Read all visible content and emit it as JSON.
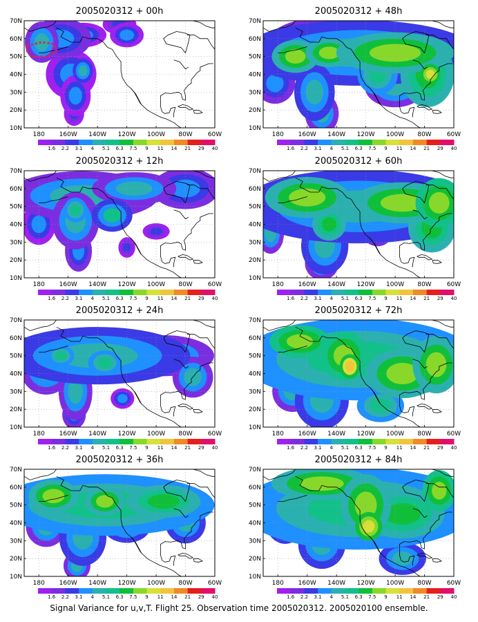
{
  "figure": {
    "caption": "Signal Variance for u,v,T. Flight 25. Observation time 2005020312. 2005020100 ensemble."
  },
  "colorbar": {
    "labels": [
      "1.6",
      "2.2",
      "3.1",
      "4",
      "5.1",
      "6.3",
      "7.5",
      "9",
      "11",
      "14",
      "21",
      "29",
      "40"
    ],
    "colors": [
      "#a020f0",
      "#7b2ee0",
      "#3a3ae6",
      "#1e90ff",
      "#2bb0b0",
      "#12c08a",
      "#0fbf3a",
      "#88d82a",
      "#d8e03a",
      "#f0c43c",
      "#f08a28",
      "#e61e1e",
      "#e0106a"
    ]
  },
  "colors": {
    "land_outline": "#000000",
    "grid": "#9a9a9a",
    "frame": "#000000",
    "observation_marker": "#e8204a"
  },
  "chart_data": [
    {
      "type": "heatmap",
      "title": "2005020312 + 00h",
      "xlim": [
        -190,
        -60
      ],
      "ylim": [
        10,
        70
      ],
      "x_ticks": [
        "180",
        "160W",
        "140W",
        "120W",
        "100W",
        "80W",
        "60W"
      ],
      "y_ticks": [
        "10N",
        "20N",
        "30N",
        "40N",
        "50N",
        "60N",
        "70N"
      ],
      "grid": true,
      "blobs": [
        {
          "lon": -178,
          "lat": 58,
          "rx": 10,
          "ry": 10,
          "level": 0.3
        },
        {
          "lon": -165,
          "lat": 60,
          "rx": 18,
          "ry": 10,
          "level": 0.28
        },
        {
          "lon": -150,
          "lat": 62,
          "rx": 14,
          "ry": 6,
          "level": 0.22
        },
        {
          "lon": -120,
          "lat": 62,
          "rx": 10,
          "ry": 6,
          "level": 0.22
        },
        {
          "lon": -125,
          "lat": 68,
          "rx": 10,
          "ry": 5,
          "level": 0.18
        },
        {
          "lon": -158,
          "lat": 40,
          "rx": 15,
          "ry": 12,
          "level": 0.22
        },
        {
          "lon": -155,
          "lat": 28,
          "rx": 9,
          "ry": 10,
          "level": 0.22
        },
        {
          "lon": -156,
          "lat": 18,
          "rx": 6,
          "ry": 6,
          "level": 0.18
        },
        {
          "lon": -150,
          "lat": 42,
          "rx": 6,
          "ry": 6,
          "level": 0.35
        }
      ]
    },
    {
      "type": "heatmap",
      "title": "2005020312 + 48h",
      "xlim": [
        -190,
        -60
      ],
      "ylim": [
        10,
        70
      ],
      "x_ticks": [
        "180",
        "160W",
        "140W",
        "120W",
        "100W",
        "80W",
        "60W"
      ],
      "y_ticks": [
        "10N",
        "20N",
        "30N",
        "40N",
        "50N",
        "60N",
        "70N"
      ],
      "grid": true,
      "blobs": [
        {
          "lon": -125,
          "lat": 52,
          "rx": 70,
          "ry": 16,
          "level": 0.32
        },
        {
          "lon": -150,
          "lat": 60,
          "rx": 30,
          "ry": 10,
          "level": 0.3
        },
        {
          "lon": -168,
          "lat": 50,
          "rx": 14,
          "ry": 8,
          "level": 0.55
        },
        {
          "lon": -145,
          "lat": 52,
          "rx": 14,
          "ry": 7,
          "level": 0.55
        },
        {
          "lon": -100,
          "lat": 52,
          "rx": 35,
          "ry": 10,
          "level": 0.55
        },
        {
          "lon": -112,
          "lat": 40,
          "rx": 12,
          "ry": 10,
          "level": 0.45
        },
        {
          "lon": -100,
          "lat": 33,
          "rx": 18,
          "ry": 10,
          "level": 0.3
        },
        {
          "lon": -78,
          "lat": 40,
          "rx": 16,
          "ry": 16,
          "level": 0.5
        },
        {
          "lon": -155,
          "lat": 30,
          "rx": 12,
          "ry": 14,
          "level": 0.32
        },
        {
          "lon": -150,
          "lat": 18,
          "rx": 10,
          "ry": 10,
          "level": 0.3
        },
        {
          "lon": -182,
          "lat": 35,
          "rx": 12,
          "ry": 10,
          "level": 0.25
        },
        {
          "lon": -76,
          "lat": 40,
          "rx": 6,
          "ry": 5,
          "level": 0.68
        }
      ]
    },
    {
      "type": "heatmap",
      "title": "2005020312 + 12h",
      "xlim": [
        -190,
        -60
      ],
      "ylim": [
        10,
        70
      ],
      "x_ticks": [
        "180",
        "160W",
        "140W",
        "120W",
        "100W",
        "80W",
        "60W"
      ],
      "y_ticks": [
        "10N",
        "20N",
        "30N",
        "40N",
        "50N",
        "60N",
        "70N"
      ],
      "grid": true,
      "blobs": [
        {
          "lon": -150,
          "lat": 56,
          "rx": 45,
          "ry": 12,
          "level": 0.3
        },
        {
          "lon": -115,
          "lat": 60,
          "rx": 25,
          "ry": 8,
          "level": 0.3
        },
        {
          "lon": -80,
          "lat": 60,
          "rx": 20,
          "ry": 10,
          "level": 0.25
        },
        {
          "lon": -155,
          "lat": 42,
          "rx": 14,
          "ry": 14,
          "level": 0.3
        },
        {
          "lon": -180,
          "lat": 40,
          "rx": 10,
          "ry": 10,
          "level": 0.22
        },
        {
          "lon": -153,
          "lat": 25,
          "rx": 8,
          "ry": 10,
          "level": 0.24
        },
        {
          "lon": -130,
          "lat": 45,
          "rx": 12,
          "ry": 8,
          "level": 0.38
        },
        {
          "lon": -120,
          "lat": 27,
          "rx": 5,
          "ry": 5,
          "level": 0.2
        },
        {
          "lon": -100,
          "lat": 36,
          "rx": 8,
          "ry": 4,
          "level": 0.2
        },
        {
          "lon": -155,
          "lat": 48,
          "rx": 7,
          "ry": 6,
          "level": 0.45
        }
      ]
    },
    {
      "type": "heatmap",
      "title": "2005020312 + 60h",
      "xlim": [
        -190,
        -60
      ],
      "ylim": [
        10,
        70
      ],
      "x_ticks": [
        "180",
        "160W",
        "140W",
        "120W",
        "100W",
        "80W",
        "60W"
      ],
      "y_ticks": [
        "10N",
        "20N",
        "30N",
        "40N",
        "50N",
        "60N",
        "70N"
      ],
      "grid": true,
      "blobs": [
        {
          "lon": -125,
          "lat": 50,
          "rx": 70,
          "ry": 18,
          "level": 0.34
        },
        {
          "lon": -160,
          "lat": 55,
          "rx": 25,
          "ry": 10,
          "level": 0.55
        },
        {
          "lon": -130,
          "lat": 58,
          "rx": 18,
          "ry": 10,
          "level": 0.3
        },
        {
          "lon": -95,
          "lat": 52,
          "rx": 30,
          "ry": 10,
          "level": 0.55
        },
        {
          "lon": -70,
          "lat": 52,
          "rx": 14,
          "ry": 12,
          "level": 0.62
        },
        {
          "lon": -112,
          "lat": 38,
          "rx": 10,
          "ry": 9,
          "level": 0.3
        },
        {
          "lon": -75,
          "lat": 38,
          "rx": 14,
          "ry": 12,
          "level": 0.5
        },
        {
          "lon": -148,
          "lat": 28,
          "rx": 14,
          "ry": 14,
          "level": 0.32
        },
        {
          "lon": -150,
          "lat": 18,
          "rx": 10,
          "ry": 8,
          "level": 0.3
        },
        {
          "lon": -185,
          "lat": 35,
          "rx": 8,
          "ry": 10,
          "level": 0.3
        },
        {
          "lon": -145,
          "lat": 40,
          "rx": 10,
          "ry": 8,
          "level": 0.5
        }
      ]
    },
    {
      "type": "heatmap",
      "title": "2005020312 + 24h",
      "xlim": [
        -190,
        -60
      ],
      "ylim": [
        10,
        70
      ],
      "x_ticks": [
        "180",
        "160W",
        "140W",
        "120W",
        "100W",
        "80W",
        "60W"
      ],
      "y_ticks": [
        "10N",
        "20N",
        "30N",
        "40N",
        "50N",
        "60N",
        "70N"
      ],
      "grid": true,
      "blobs": [
        {
          "lon": -140,
          "lat": 50,
          "rx": 55,
          "ry": 14,
          "level": 0.35
        },
        {
          "lon": -95,
          "lat": 50,
          "rx": 30,
          "ry": 10,
          "level": 0.3
        },
        {
          "lon": -175,
          "lat": 42,
          "rx": 15,
          "ry": 12,
          "level": 0.3
        },
        {
          "lon": -155,
          "lat": 30,
          "rx": 10,
          "ry": 14,
          "level": 0.3
        },
        {
          "lon": -156,
          "lat": 17,
          "rx": 7,
          "ry": 7,
          "level": 0.25
        },
        {
          "lon": -135,
          "lat": 46,
          "rx": 10,
          "ry": 6,
          "level": 0.45
        },
        {
          "lon": -165,
          "lat": 50,
          "rx": 8,
          "ry": 5,
          "level": 0.45
        },
        {
          "lon": -75,
          "lat": 38,
          "rx": 12,
          "ry": 10,
          "level": 0.3
        },
        {
          "lon": -123,
          "lat": 26,
          "rx": 7,
          "ry": 5,
          "level": 0.22
        }
      ]
    },
    {
      "type": "heatmap",
      "title": "2005020312 + 72h",
      "xlim": [
        -190,
        -60
      ],
      "ylim": [
        10,
        70
      ],
      "x_ticks": [
        "180",
        "160W",
        "140W",
        "120W",
        "100W",
        "80W",
        "60W"
      ],
      "y_ticks": [
        "10N",
        "20N",
        "30N",
        "40N",
        "50N",
        "60N",
        "70N"
      ],
      "grid": true,
      "blobs": [
        {
          "lon": -125,
          "lat": 48,
          "rx": 70,
          "ry": 20,
          "level": 0.4
        },
        {
          "lon": -165,
          "lat": 58,
          "rx": 18,
          "ry": 8,
          "level": 0.58
        },
        {
          "lon": -135,
          "lat": 50,
          "rx": 14,
          "ry": 12,
          "level": 0.58
        },
        {
          "lon": -131,
          "lat": 44,
          "rx": 6,
          "ry": 6,
          "level": 0.72
        },
        {
          "lon": -95,
          "lat": 40,
          "rx": 22,
          "ry": 12,
          "level": 0.55
        },
        {
          "lon": -72,
          "lat": 45,
          "rx": 14,
          "ry": 14,
          "level": 0.55
        },
        {
          "lon": -150,
          "lat": 25,
          "rx": 16,
          "ry": 14,
          "level": 0.36
        },
        {
          "lon": -110,
          "lat": 22,
          "rx": 14,
          "ry": 8,
          "level": 0.42
        },
        {
          "lon": -170,
          "lat": 30,
          "rx": 12,
          "ry": 10,
          "level": 0.3
        }
      ]
    },
    {
      "type": "heatmap",
      "title": "2005020312 + 36h",
      "xlim": [
        -190,
        -60
      ],
      "ylim": [
        10,
        70
      ],
      "x_ticks": [
        "180",
        "160W",
        "140W",
        "120W",
        "100W",
        "80W",
        "60W"
      ],
      "y_ticks": [
        "10N",
        "20N",
        "30N",
        "40N",
        "50N",
        "60N",
        "70N"
      ],
      "grid": true,
      "blobs": [
        {
          "lon": -135,
          "lat": 50,
          "rx": 65,
          "ry": 15,
          "level": 0.4
        },
        {
          "lon": -170,
          "lat": 55,
          "rx": 15,
          "ry": 8,
          "level": 0.55
        },
        {
          "lon": -135,
          "lat": 52,
          "rx": 12,
          "ry": 7,
          "level": 0.55
        },
        {
          "lon": -95,
          "lat": 52,
          "rx": 22,
          "ry": 8,
          "level": 0.5
        },
        {
          "lon": -150,
          "lat": 32,
          "rx": 14,
          "ry": 14,
          "level": 0.35
        },
        {
          "lon": -154,
          "lat": 16,
          "rx": 8,
          "ry": 7,
          "level": 0.3
        },
        {
          "lon": -120,
          "lat": 38,
          "rx": 14,
          "ry": 8,
          "level": 0.35
        },
        {
          "lon": -80,
          "lat": 40,
          "rx": 12,
          "ry": 10,
          "level": 0.32
        },
        {
          "lon": -175,
          "lat": 38,
          "rx": 12,
          "ry": 10,
          "level": 0.3
        }
      ]
    },
    {
      "type": "heatmap",
      "title": "2005020312 + 84h",
      "xlim": [
        -190,
        -60
      ],
      "ylim": [
        10,
        70
      ],
      "x_ticks": [
        "180",
        "160W",
        "140W",
        "120W",
        "100W",
        "80W",
        "60W"
      ],
      "y_ticks": [
        "10N",
        "20N",
        "30N",
        "40N",
        "50N",
        "60N",
        "70N"
      ],
      "grid": true,
      "blobs": [
        {
          "lon": -125,
          "lat": 48,
          "rx": 70,
          "ry": 20,
          "level": 0.4
        },
        {
          "lon": -150,
          "lat": 62,
          "rx": 30,
          "ry": 8,
          "level": 0.55
        },
        {
          "lon": -120,
          "lat": 50,
          "rx": 15,
          "ry": 15,
          "level": 0.55
        },
        {
          "lon": -118,
          "lat": 38,
          "rx": 8,
          "ry": 7,
          "level": 0.68
        },
        {
          "lon": -95,
          "lat": 45,
          "rx": 25,
          "ry": 12,
          "level": 0.52
        },
        {
          "lon": -70,
          "lat": 58,
          "rx": 10,
          "ry": 10,
          "level": 0.62
        },
        {
          "lon": -150,
          "lat": 28,
          "rx": 14,
          "ry": 12,
          "level": 0.36
        },
        {
          "lon": -95,
          "lat": 20,
          "rx": 14,
          "ry": 8,
          "level": 0.36
        },
        {
          "lon": -175,
          "lat": 42,
          "rx": 12,
          "ry": 12,
          "level": 0.32
        }
      ]
    }
  ]
}
